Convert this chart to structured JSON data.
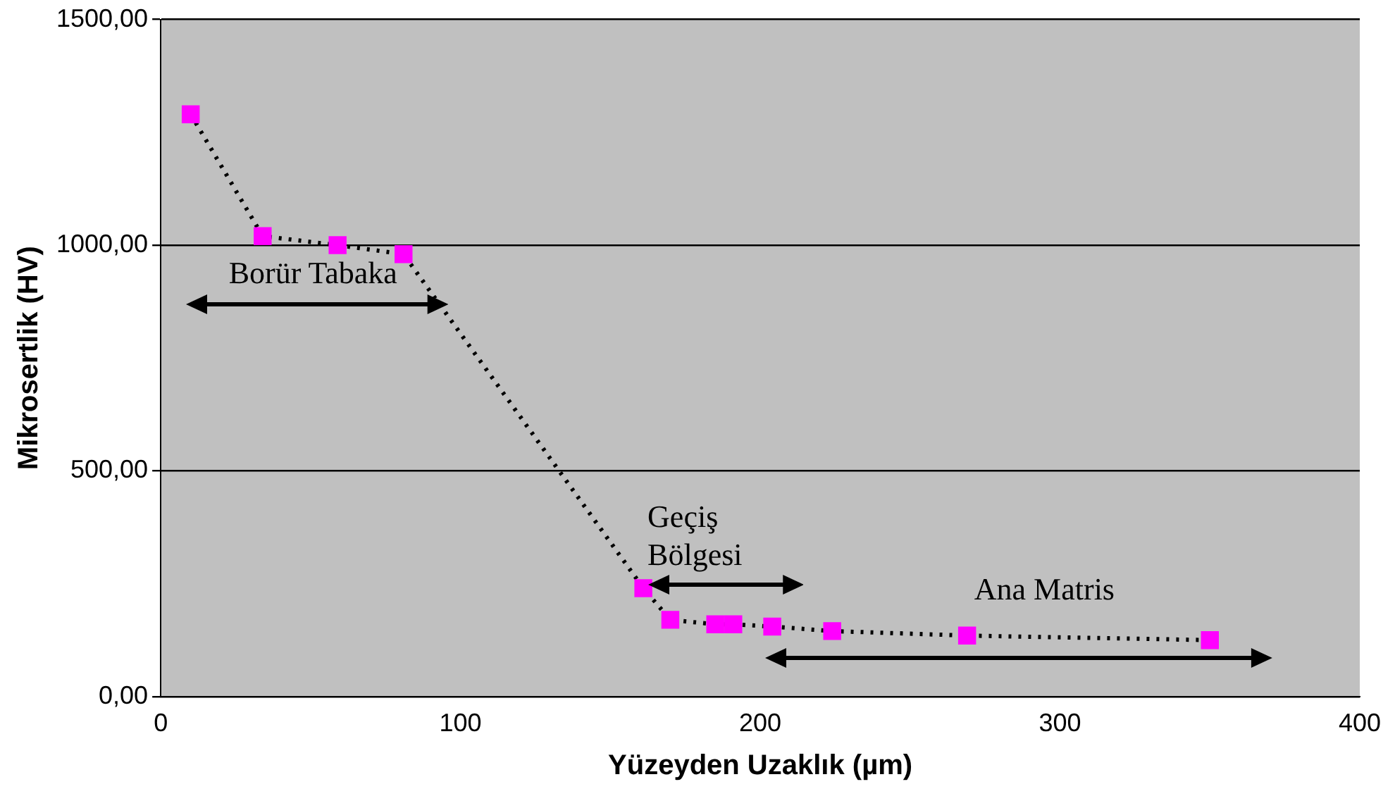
{
  "chart_data": {
    "type": "scatter",
    "xlabel": "Yüzeyden Uzaklık (µm)",
    "ylabel": "Mikrosertlik (HV)",
    "xlim": [
      0,
      400
    ],
    "xticks": [
      0,
      100,
      200,
      300,
      400
    ],
    "ylim": [
      0,
      1500
    ],
    "yticks": [
      {
        "value": 0,
        "label": "0,00"
      },
      {
        "value": 500,
        "label": "500,00"
      },
      {
        "value": 1000,
        "label": "1000,00"
      },
      {
        "value": 1500,
        "label": "1500,00"
      }
    ],
    "grid": "y",
    "legend": false,
    "series": [
      {
        "type": "line",
        "color": "#000000",
        "line_style": "dotted",
        "marker": "none",
        "x": [
          10,
          34,
          59,
          81,
          161,
          170,
          185,
          191,
          204,
          224,
          269,
          350
        ],
        "values": [
          1290,
          1020,
          1000,
          980,
          240,
          170,
          160,
          160,
          155,
          145,
          135,
          125
        ]
      },
      {
        "type": "scatter",
        "color": "#ff00ff",
        "marker": "square",
        "x": [
          10,
          34,
          59,
          81,
          161,
          170,
          185,
          191,
          204,
          224,
          269,
          350
        ],
        "values": [
          1290,
          1020,
          1000,
          980,
          240,
          170,
          160,
          160,
          155,
          145,
          135,
          125
        ]
      }
    ],
    "annotations": [
      "Borür Tabaka",
      "Geçiş Bölgesi",
      "Ana Matris"
    ]
  }
}
